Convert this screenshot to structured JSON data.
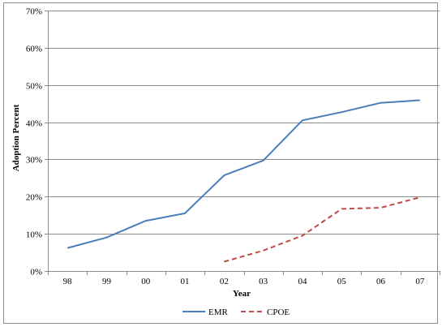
{
  "chart_data": {
    "type": "line",
    "categories": [
      "98",
      "99",
      "00",
      "01",
      "02",
      "03",
      "04",
      "05",
      "06",
      "07"
    ],
    "series": [
      {
        "name": "EMR",
        "color": "#4a7ebb",
        "dash": "solid",
        "values": [
          6.2,
          9.0,
          13.5,
          15.5,
          25.7,
          29.7,
          40.5,
          42.7,
          45.2,
          45.9
        ]
      },
      {
        "name": "CPOE",
        "color": "#be4b48",
        "dash": "dashed",
        "values": [
          null,
          null,
          null,
          null,
          2.5,
          5.5,
          9.5,
          16.7,
          17.0,
          19.8
        ]
      }
    ],
    "title": "",
    "xlabel": "Year",
    "ylabel": "Adoption Percent",
    "ylim": [
      0,
      70
    ],
    "yticks": [
      0,
      10,
      20,
      30,
      40,
      50,
      60,
      70
    ],
    "ytick_labels": [
      "0%",
      "10%",
      "20%",
      "30%",
      "40%",
      "50%",
      "60%",
      "70%"
    ],
    "grid": "horizontal",
    "legend_position": "bottom"
  }
}
